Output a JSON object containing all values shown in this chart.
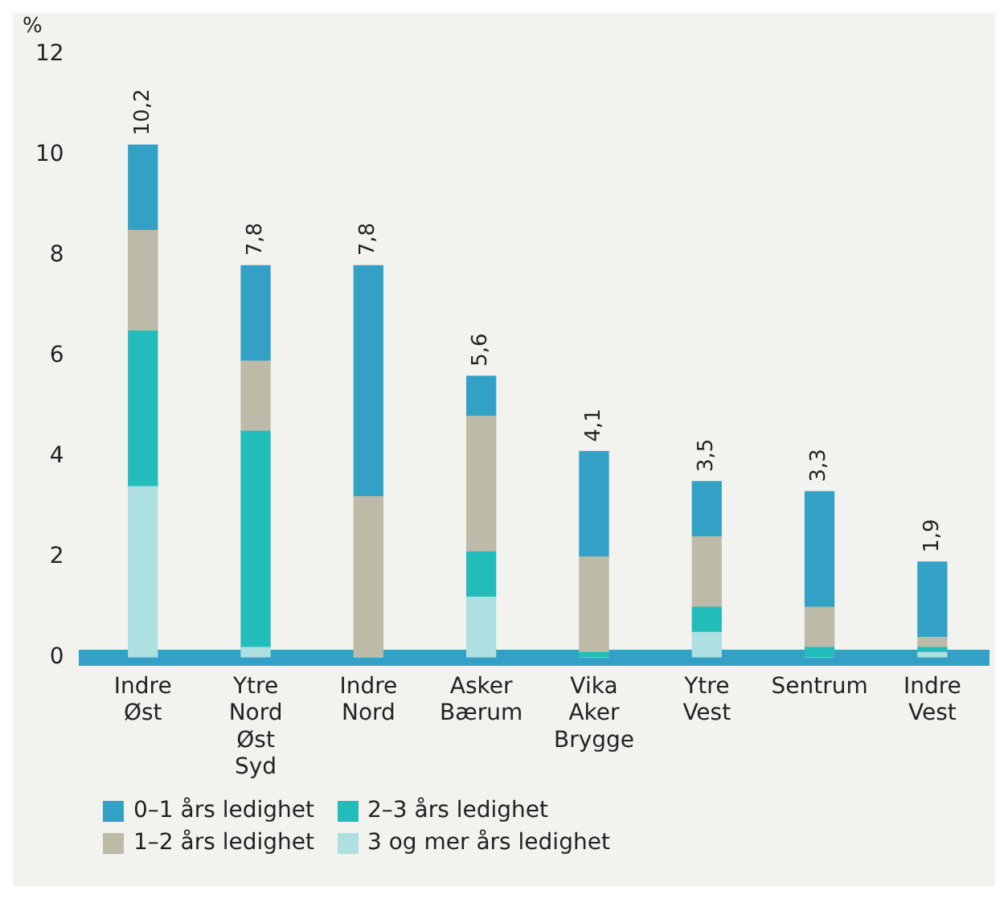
{
  "chart_data": {
    "type": "bar",
    "stacked": true,
    "ylabel": "%",
    "categories": [
      "Indre Øst",
      "Ytre Nord Øst Syd",
      "Indre Nord",
      "Asker Bærum",
      "Vika Aker Brygge",
      "Ytre Vest",
      "Sentrum",
      "Indre Vest"
    ],
    "series": [
      {
        "name": "3 og mer års ledighet",
        "color": "#aedfe1",
        "values": [
          3.4,
          0.2,
          0,
          1.2,
          0,
          0.5,
          0,
          0.1
        ]
      },
      {
        "name": "2–3 års ledighet",
        "color": "#22bcbb",
        "values": [
          3.1,
          4.3,
          0,
          0.9,
          0.1,
          0.5,
          0.2,
          0.1
        ]
      },
      {
        "name": "1–2 års ledighet",
        "color": "#bdbba8",
        "values": [
          2.0,
          1.4,
          3.2,
          2.7,
          1.9,
          1.4,
          0.8,
          0.2
        ]
      },
      {
        "name": "0–1 års ledighet",
        "color": "#33a1c6",
        "values": [
          1.7,
          1.9,
          4.6,
          0.8,
          2.1,
          1.1,
          2.3,
          1.5
        ]
      }
    ],
    "totals": [
      "10,2",
      "7,8",
      "7,8",
      "5,6",
      "4,1",
      "3,5",
      "3,3",
      "1,9"
    ],
    "ylim": [
      0,
      12
    ],
    "yticks": [
      0,
      2,
      4,
      6,
      8,
      10,
      12
    ],
    "grid": false,
    "legend": "bottom"
  }
}
